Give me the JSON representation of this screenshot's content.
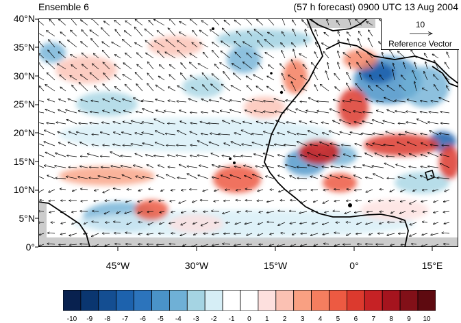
{
  "header": {
    "ensemble_label": "Ensemble 6",
    "forecast_label": "(57 h forecast) 0900 UTC 13 Aug 2004"
  },
  "map": {
    "lat_labels": [
      "40°N",
      "35°N",
      "30°N",
      "25°N",
      "20°N",
      "15°N",
      "10°N",
      "5°N",
      "0°"
    ],
    "lon_labels": [
      "45°W",
      "30°W",
      "15°W",
      "0°",
      "15°E"
    ],
    "lat_range": [
      0,
      40
    ],
    "lon_range": [
      -60,
      20
    ],
    "land_color": "#cccccc",
    "coastline_color": "#000000"
  },
  "reference_vector": {
    "magnitude": "10",
    "label": "Reference Vector"
  },
  "colorbar": {
    "labels": [
      "-10",
      "-9",
      "-8",
      "-7",
      "-6",
      "-5",
      "-4",
      "-3",
      "-2",
      "-1",
      "0",
      "1",
      "2",
      "3",
      "4",
      "5",
      "6",
      "7",
      "8",
      "9",
      "10"
    ],
    "colors": [
      "#08214f",
      "#0a3670",
      "#144e92",
      "#1d62ad",
      "#2c74bc",
      "#4a93c8",
      "#6fb0d6",
      "#a5d4e3",
      "#d6eef6",
      "#ffffff",
      "#ffffff",
      "#fde0de",
      "#fbc1b3",
      "#f9a082",
      "#f57e5f",
      "#ed5a42",
      "#dc3a2e",
      "#c62225",
      "#a5141e",
      "#821018",
      "#5e0a10"
    ]
  }
}
